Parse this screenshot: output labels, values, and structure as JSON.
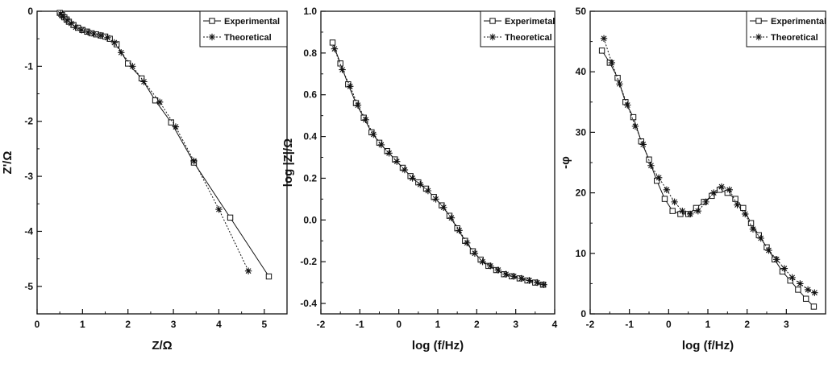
{
  "chart_data": [
    {
      "type": "line",
      "xlabel": "Z/Ω",
      "ylabel": "Z'/Ω",
      "xlim": [
        0,
        5.5
      ],
      "ylim": [
        -5.5,
        0
      ],
      "xticks": [
        0,
        1,
        2,
        3,
        4,
        5
      ],
      "yticks": [
        0,
        -1,
        -2,
        -3,
        -4,
        -5
      ],
      "legend_position": "top-right",
      "series": [
        {
          "name": "Experimental",
          "marker": "open-square",
          "line": "solid",
          "x": [
            0.5,
            0.55,
            0.6,
            0.65,
            0.7,
            0.8,
            0.9,
            1.0,
            1.1,
            1.2,
            1.3,
            1.4,
            1.5,
            1.6,
            1.75,
            2.0,
            2.3,
            2.6,
            2.95,
            3.45,
            4.25,
            5.1
          ],
          "y": [
            -0.03,
            -0.07,
            -0.11,
            -0.15,
            -0.19,
            -0.25,
            -0.3,
            -0.34,
            -0.37,
            -0.4,
            -0.42,
            -0.44,
            -0.46,
            -0.5,
            -0.6,
            -0.95,
            -1.22,
            -1.62,
            -2.02,
            -2.75,
            -3.75,
            -4.82
          ]
        },
        {
          "name": "Theoretical",
          "marker": "asterisk",
          "line": "dotted",
          "x": [
            0.52,
            0.58,
            0.66,
            0.75,
            0.85,
            0.98,
            1.12,
            1.25,
            1.4,
            1.55,
            1.7,
            1.85,
            2.1,
            2.35,
            2.7,
            3.05,
            3.45,
            4.0,
            4.65
          ],
          "y": [
            -0.05,
            -0.1,
            -0.16,
            -0.22,
            -0.29,
            -0.34,
            -0.38,
            -0.41,
            -0.44,
            -0.48,
            -0.57,
            -0.75,
            -1.0,
            -1.28,
            -1.65,
            -2.1,
            -2.72,
            -3.6,
            -4.72
          ]
        }
      ]
    },
    {
      "type": "line",
      "xlabel": "log (f/Hz)",
      "ylabel": "log |Z|/Ω",
      "xlim": [
        -2,
        4
      ],
      "ylim": [
        -0.45,
        1.0
      ],
      "xticks": [
        -2,
        -1,
        0,
        1,
        2,
        3,
        4
      ],
      "yticks": [
        -0.4,
        -0.2,
        0.0,
        0.2,
        0.4,
        0.6,
        0.8,
        1.0
      ],
      "yticklabels": [
        "-0.4",
        "-0.2",
        "0.0",
        "0.2",
        "0.4",
        "0.6",
        "0.8",
        "1.0"
      ],
      "legend_position": "top-right",
      "series": [
        {
          "name": "Experimetal",
          "marker": "open-square",
          "line": "solid",
          "x": [
            -1.7,
            -1.5,
            -1.3,
            -1.1,
            -0.9,
            -0.7,
            -0.5,
            -0.3,
            -0.1,
            0.1,
            0.3,
            0.5,
            0.7,
            0.9,
            1.1,
            1.3,
            1.5,
            1.7,
            1.9,
            2.1,
            2.3,
            2.5,
            2.7,
            2.9,
            3.1,
            3.3,
            3.5,
            3.7
          ],
          "y": [
            0.85,
            0.75,
            0.65,
            0.56,
            0.49,
            0.42,
            0.37,
            0.33,
            0.29,
            0.25,
            0.21,
            0.18,
            0.15,
            0.11,
            0.07,
            0.02,
            -0.04,
            -0.1,
            -0.15,
            -0.19,
            -0.22,
            -0.24,
            -0.26,
            -0.27,
            -0.28,
            -0.29,
            -0.3,
            -0.31
          ]
        },
        {
          "name": "Theoretical",
          "marker": "asterisk",
          "line": "dotted",
          "x": [
            -1.65,
            -1.45,
            -1.25,
            -1.05,
            -0.85,
            -0.65,
            -0.45,
            -0.25,
            -0.05,
            0.15,
            0.35,
            0.55,
            0.75,
            0.95,
            1.15,
            1.35,
            1.55,
            1.75,
            1.95,
            2.15,
            2.35,
            2.55,
            2.75,
            2.95,
            3.15,
            3.35,
            3.55,
            3.72
          ],
          "y": [
            0.82,
            0.72,
            0.64,
            0.55,
            0.48,
            0.41,
            0.36,
            0.32,
            0.28,
            0.24,
            0.2,
            0.17,
            0.14,
            0.1,
            0.06,
            0.01,
            -0.05,
            -0.11,
            -0.16,
            -0.2,
            -0.22,
            -0.24,
            -0.26,
            -0.27,
            -0.28,
            -0.29,
            -0.3,
            -0.31
          ]
        }
      ]
    },
    {
      "type": "line",
      "xlabel": "log (f/Hz)",
      "ylabel": "-φ",
      "xlim": [
        -2,
        4
      ],
      "ylim": [
        0,
        50
      ],
      "xticks": [
        -2,
        -1,
        0,
        1,
        2,
        3
      ],
      "yticks": [
        0,
        10,
        20,
        30,
        40,
        50
      ],
      "legend_position": "top-right",
      "series": [
        {
          "name": "Experimental",
          "marker": "open-square",
          "line": "solid",
          "x": [
            -1.7,
            -1.5,
            -1.3,
            -1.1,
            -0.9,
            -0.7,
            -0.5,
            -0.3,
            -0.1,
            0.1,
            0.3,
            0.5,
            0.7,
            0.9,
            1.1,
            1.3,
            1.5,
            1.7,
            1.9,
            2.1,
            2.3,
            2.5,
            2.7,
            2.9,
            3.1,
            3.3,
            3.5,
            3.7
          ],
          "y": [
            43.5,
            41.5,
            39.0,
            35.0,
            32.5,
            28.5,
            25.5,
            22.0,
            19.0,
            17.0,
            16.5,
            16.5,
            17.5,
            18.5,
            19.5,
            20.5,
            20.0,
            19.0,
            17.5,
            15.0,
            13.0,
            11.0,
            9.0,
            7.0,
            5.5,
            4.0,
            2.5,
            1.2
          ]
        },
        {
          "name": "Theoretical",
          "marker": "asterisk",
          "line": "dotted",
          "x": [
            -1.65,
            -1.45,
            -1.25,
            -1.05,
            -0.85,
            -0.65,
            -0.45,
            -0.25,
            -0.05,
            0.15,
            0.35,
            0.55,
            0.75,
            0.95,
            1.15,
            1.35,
            1.55,
            1.75,
            1.95,
            2.15,
            2.35,
            2.55,
            2.75,
            2.95,
            3.15,
            3.35,
            3.55,
            3.72
          ],
          "y": [
            45.5,
            41.5,
            38.0,
            34.5,
            31.0,
            28.0,
            24.5,
            22.5,
            20.5,
            18.5,
            17.0,
            16.5,
            17.0,
            18.5,
            20.0,
            21.0,
            20.5,
            18.0,
            16.5,
            14.0,
            12.5,
            10.5,
            9.0,
            7.5,
            6.0,
            5.0,
            4.0,
            3.5
          ]
        }
      ]
    }
  ]
}
